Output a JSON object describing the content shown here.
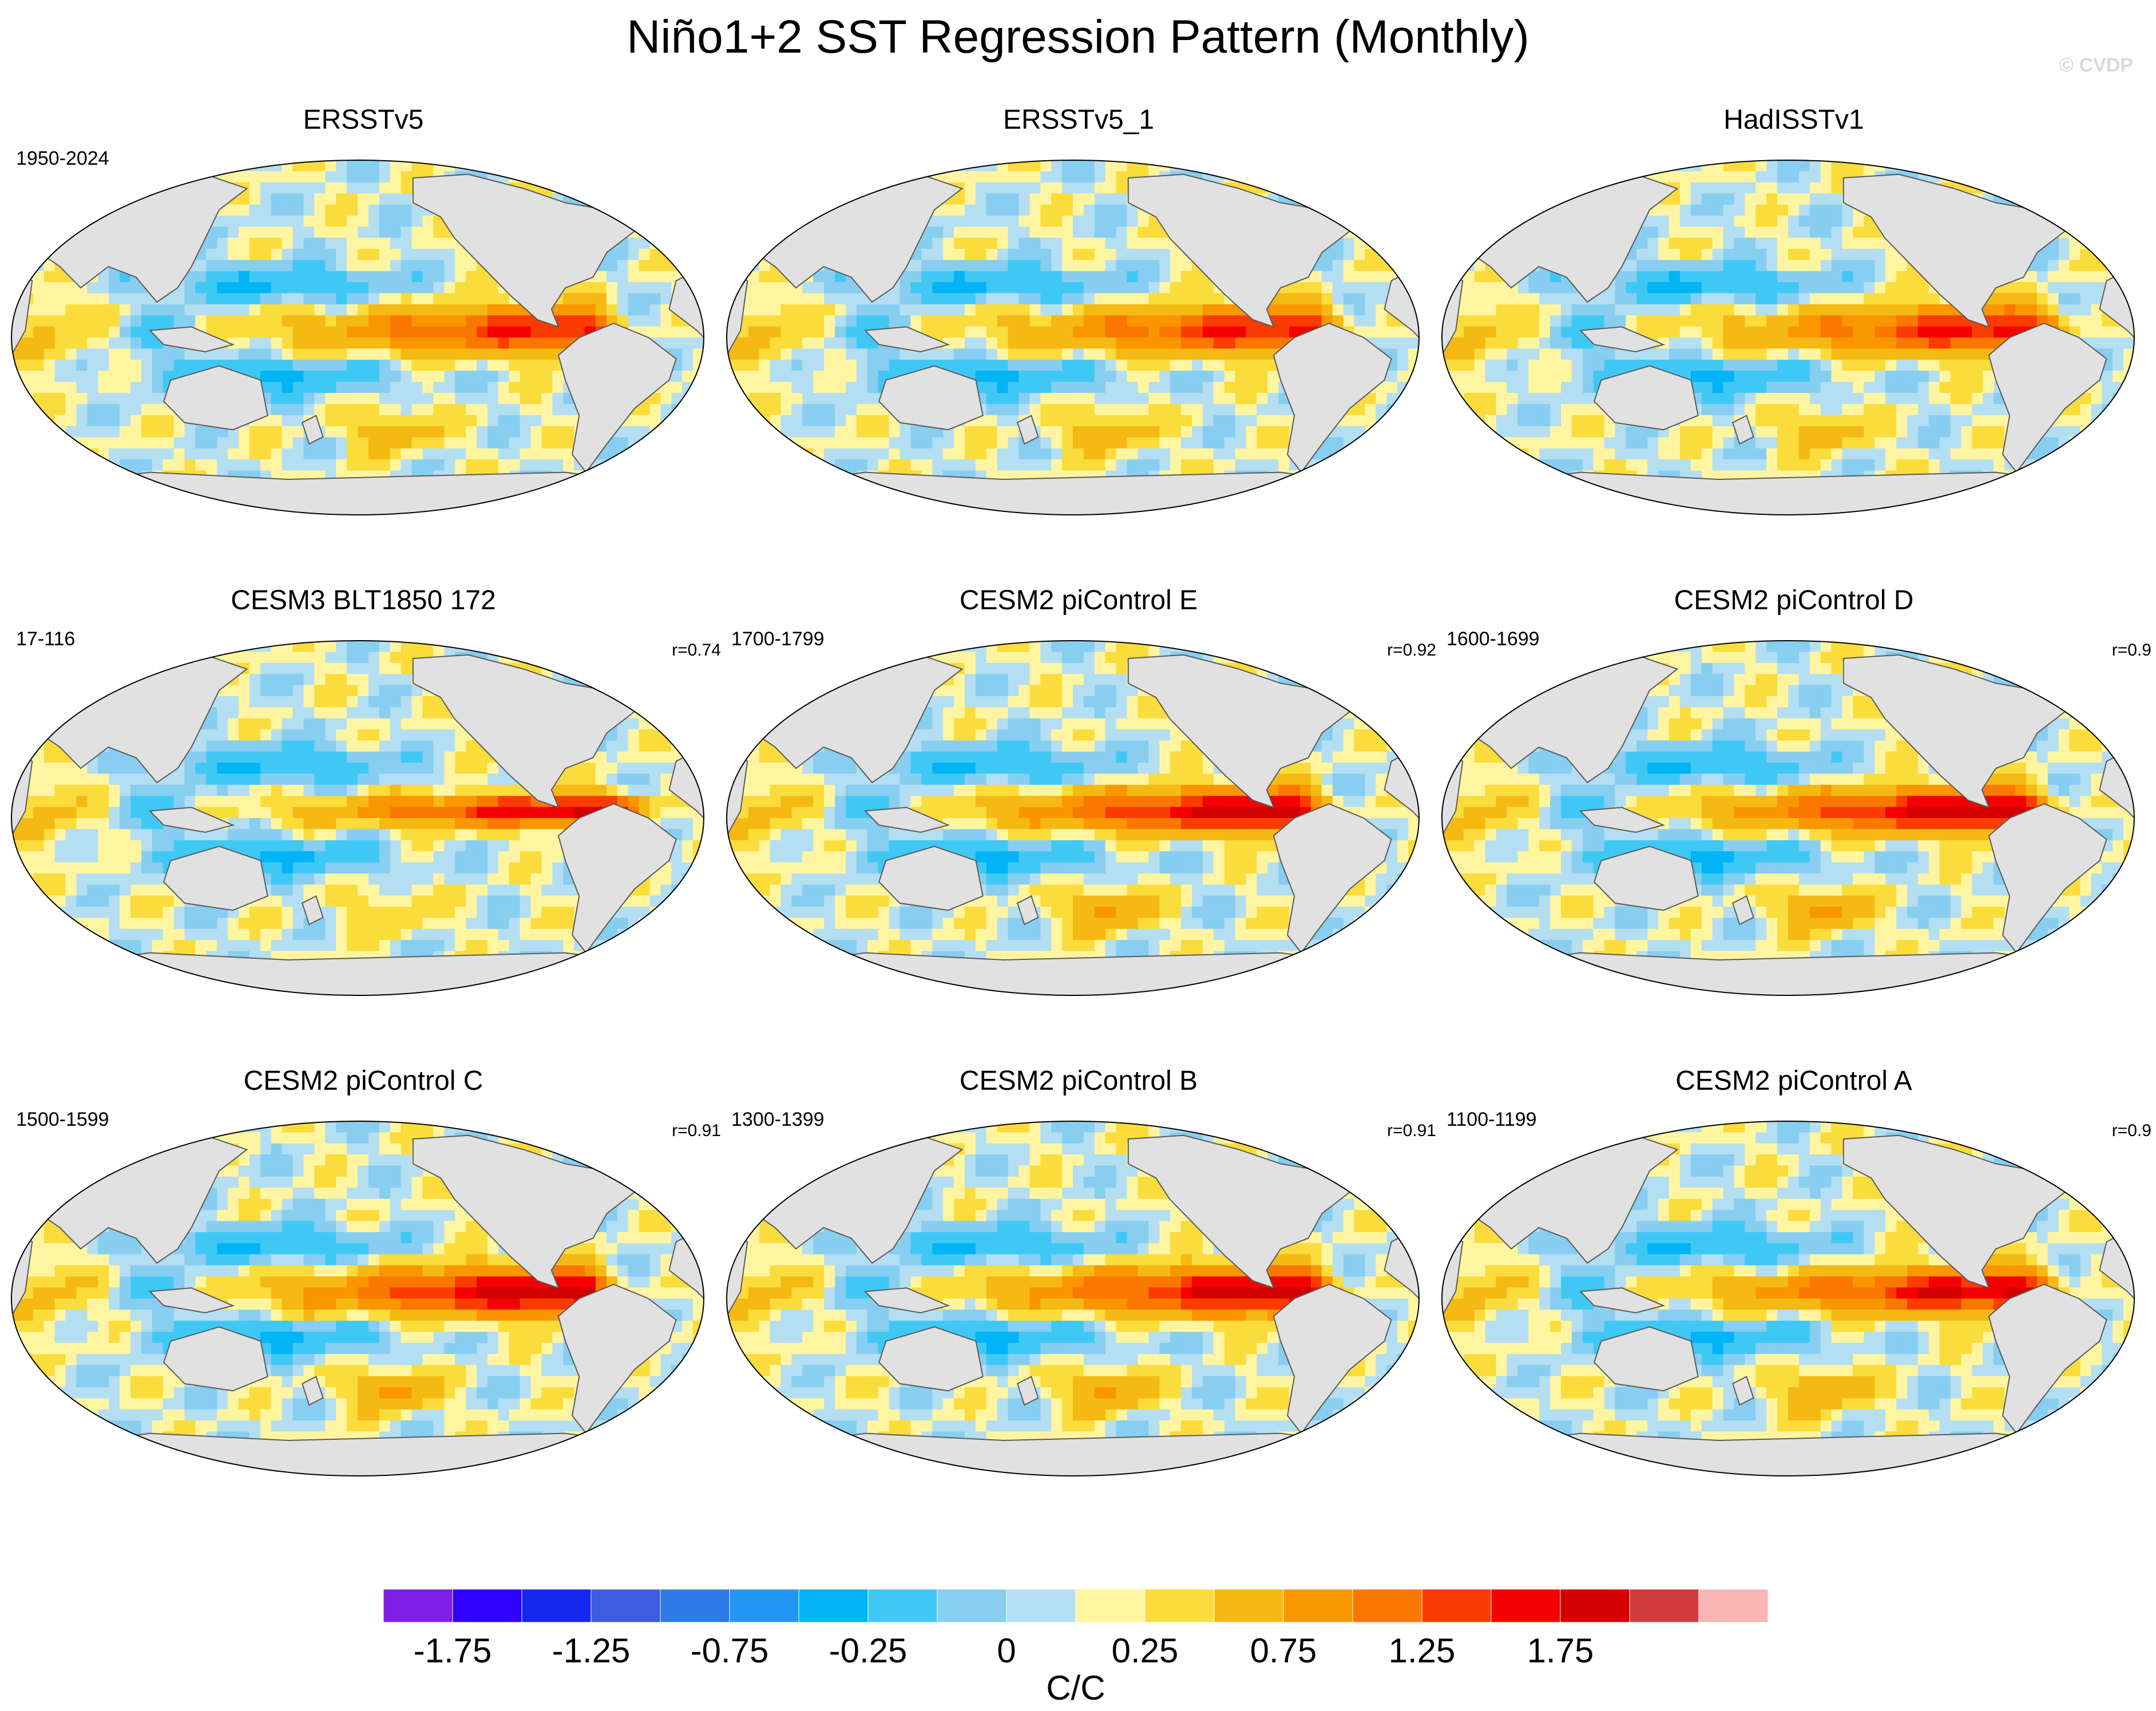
{
  "chart_data": {
    "type": "heatmap",
    "title": "Niño1+2 SST Regression Pattern (Monthly)",
    "copyright": "© CVDP",
    "units": "C/C",
    "colorbar": {
      "levels": [
        -2,
        -1.75,
        -1.5,
        -1.25,
        -1,
        -0.75,
        -0.5,
        -0.25,
        -0.1,
        0,
        0.1,
        0.25,
        0.5,
        0.75,
        1,
        1.25,
        1.5,
        1.75,
        2
      ],
      "tick_labels": [
        "-1.75",
        "-1.25",
        "-0.75",
        "-0.25",
        "0",
        "0.25",
        "0.75",
        "1.25",
        "1.75"
      ],
      "colors": [
        "#7e1ee6",
        "#2d00ff",
        "#1428ef",
        "#3c5ce1",
        "#2d7be8",
        "#2196f3",
        "#00b4f5",
        "#40c8f5",
        "#87cef0",
        "#b4def2",
        "#fff5a0",
        "#fadc3c",
        "#f5b914",
        "#fa9600",
        "#fa7800",
        "#fa3c00",
        "#f50000",
        "#d20000",
        "#d23c3c",
        "#fab4b4"
      ]
    },
    "panels": [
      {
        "title": "ERSSTv5",
        "years": "1950-2024",
        "corr": "",
        "amp": 1.3,
        "lon_c": 0.83,
        "width": 0.12,
        "south": 1.0
      },
      {
        "title": "ERSSTv5_1",
        "years": "",
        "corr": "",
        "amp": 1.35,
        "lon_c": 0.84,
        "width": 0.12,
        "south": 1.0
      },
      {
        "title": "HadISSTv1",
        "years": "",
        "corr": "",
        "amp": 1.4,
        "lon_c": 0.85,
        "width": 0.12,
        "south": 0.9
      },
      {
        "title": "CESM3 BLT1850 172",
        "years": "17-116",
        "corr": "r=0.74",
        "amp": 1.6,
        "lon_c": 0.87,
        "width": 0.08,
        "south": 0.6
      },
      {
        "title": "CESM2 piControl E",
        "years": "1700-1799",
        "corr": "r=0.92",
        "amp": 1.7,
        "lon_c": 0.82,
        "width": 0.11,
        "south": 1.3
      },
      {
        "title": "CESM2 piControl D",
        "years": "1600-1699",
        "corr": "r=0.9",
        "amp": 1.75,
        "lon_c": 0.83,
        "width": 0.11,
        "south": 1.3
      },
      {
        "title": "CESM2 piControl C",
        "years": "1500-1599",
        "corr": "r=0.91",
        "amp": 1.75,
        "lon_c": 0.82,
        "width": 0.12,
        "south": 1.3
      },
      {
        "title": "CESM2 piControl B",
        "years": "1300-1399",
        "corr": "r=0.91",
        "amp": 1.7,
        "lon_c": 0.83,
        "width": 0.12,
        "south": 1.3
      },
      {
        "title": "CESM2 piControl A",
        "years": "1100-1199",
        "corr": "r=0.9",
        "amp": 1.6,
        "lon_c": 0.84,
        "width": 0.11,
        "south": 1.2
      }
    ]
  }
}
